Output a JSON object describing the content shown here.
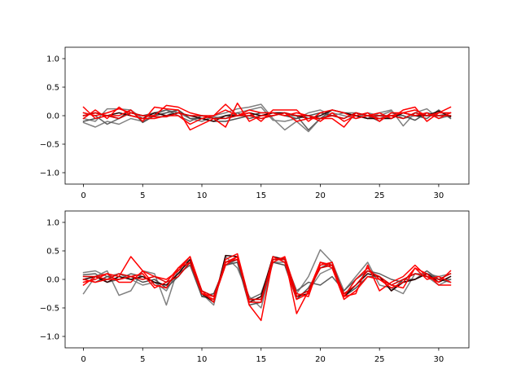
{
  "chart_data": [
    {
      "type": "line",
      "title": "",
      "xlabel": "",
      "ylabel": "",
      "xlim": [
        -1.55,
        32.55
      ],
      "ylim": [
        -1.2,
        1.2
      ],
      "xticks": [
        0,
        5,
        10,
        15,
        20,
        25,
        30
      ],
      "xtick_labels": [
        "0",
        "5",
        "10",
        "15",
        "20",
        "25",
        "30"
      ],
      "yticks": [
        -1.0,
        -0.5,
        0.0,
        0.5,
        1.0
      ],
      "ytick_labels": [
        "−1.0",
        "−0.5",
        "0.0",
        "0.5",
        "1.0"
      ],
      "grid": false,
      "legend": "none",
      "x": [
        0,
        1,
        2,
        3,
        4,
        5,
        6,
        7,
        8,
        9,
        10,
        11,
        12,
        13,
        14,
        15,
        16,
        17,
        18,
        19,
        20,
        21,
        22,
        23,
        24,
        25,
        26,
        27,
        28,
        29,
        30,
        31
      ],
      "series": [
        {
          "color": "#808080",
          "values": [
            -0.12,
            -0.2,
            -0.1,
            -0.15,
            -0.05,
            -0.1,
            0.02,
            0.1,
            0.05,
            -0.05,
            -0.1,
            0.0,
            0.05,
            0.12,
            0.15,
            0.2,
            -0.05,
            -0.25,
            -0.1,
            -0.28,
            -0.05,
            0.05,
            0.0,
            -0.05,
            0.05,
            0.0,
            0.08,
            -0.05,
            0.0,
            0.05,
            0.0,
            0.05
          ]
        },
        {
          "color": "#808080",
          "values": [
            -0.05,
            -0.1,
            0.12,
            0.12,
            0.1,
            -0.05,
            0.05,
            0.0,
            0.1,
            -0.05,
            -0.1,
            -0.02,
            -0.05,
            0.05,
            0.1,
            0.15,
            -0.08,
            -0.1,
            -0.05,
            0.05,
            0.1,
            0.0,
            0.05,
            0.05,
            -0.05,
            0.05,
            0.1,
            -0.18,
            0.05,
            0.12,
            -0.05,
            0.0
          ]
        },
        {
          "color": "#606060",
          "values": [
            0.05,
            0.0,
            -0.15,
            -0.05,
            0.05,
            0.0,
            0.05,
            0.1,
            0.0,
            -0.1,
            0.0,
            -0.05,
            0.0,
            0.05,
            -0.05,
            0.0,
            0.05,
            0.0,
            0.0,
            -0.25,
            -0.05,
            0.1,
            0.05,
            0.0,
            -0.05,
            0.0,
            -0.05,
            0.05,
            0.0,
            -0.05,
            0.1,
            -0.05
          ]
        },
        {
          "color": "#505050",
          "values": [
            -0.1,
            -0.05,
            0.0,
            -0.05,
            0.1,
            -0.12,
            0.0,
            0.05,
            0.1,
            -0.05,
            -0.05,
            -0.1,
            -0.1,
            -0.05,
            0.0,
            0.05,
            0.05,
            0.0,
            -0.05,
            0.0,
            0.05,
            0.0,
            -0.05,
            0.05,
            0.0,
            -0.1,
            0.05,
            0.0,
            -0.08,
            0.05,
            0.0,
            0.0
          ]
        },
        {
          "color": "#2a0000",
          "values": [
            0.0,
            0.05,
            0.0,
            0.05,
            0.0,
            -0.05,
            0.05,
            0.0,
            0.05,
            0.0,
            -0.05,
            -0.1,
            0.0,
            0.0,
            0.05,
            0.0,
            0.05,
            0.05,
            0.0,
            -0.05,
            0.0,
            0.1,
            0.05,
            0.0,
            -0.05,
            -0.05,
            -0.05,
            0.05,
            0.0,
            0.0,
            0.08,
            -0.02
          ]
        },
        {
          "color": "#ff0000",
          "values": [
            0.15,
            -0.05,
            0.0,
            0.0,
            0.1,
            -0.1,
            0.15,
            0.12,
            0.1,
            -0.25,
            -0.15,
            -0.05,
            -0.2,
            0.22,
            -0.1,
            0.0,
            0.0,
            0.05,
            -0.1,
            -0.05,
            -0.05,
            -0.05,
            -0.2,
            0.05,
            0.0,
            0.05,
            -0.05,
            0.1,
            0.15,
            -0.1,
            0.05,
            0.15
          ]
        },
        {
          "color": "#ff0000",
          "values": [
            0.05,
            0.0,
            0.05,
            0.12,
            0.05,
            0.0,
            0.0,
            0.18,
            0.15,
            0.05,
            0.0,
            0.0,
            0.1,
            0.0,
            0.05,
            -0.1,
            0.1,
            0.1,
            0.1,
            -0.1,
            0.05,
            0.1,
            0.05,
            -0.05,
            0.0,
            -0.05,
            0.0,
            0.05,
            0.1,
            0.0,
            0.05,
            0.05
          ]
        },
        {
          "color": "#ff0000",
          "values": [
            -0.05,
            0.1,
            -0.05,
            0.15,
            0.0,
            -0.05,
            -0.05,
            0.0,
            0.0,
            -0.15,
            -0.05,
            0.0,
            0.2,
            0.0,
            0.1,
            0.05,
            0.05,
            0.0,
            0.05,
            0.0,
            -0.1,
            0.05,
            -0.1,
            0.0,
            0.05,
            -0.1,
            0.05,
            0.05,
            0.0,
            0.05,
            -0.05,
            0.05
          ]
        },
        {
          "color": "#dd0000",
          "values": [
            0.0,
            0.05,
            0.0,
            -0.05,
            0.05,
            0.0,
            -0.02,
            -0.02,
            0.05,
            0.0,
            0.0,
            -0.05,
            -0.05,
            0.0,
            0.0,
            -0.05,
            0.0,
            0.05,
            0.0,
            0.0,
            -0.05,
            0.0,
            -0.05,
            0.05,
            0.0,
            0.0,
            0.0,
            -0.05,
            0.05,
            0.0,
            0.0,
            0.0
          ]
        }
      ]
    },
    {
      "type": "line",
      "title": "",
      "xlabel": "",
      "ylabel": "",
      "xlim": [
        -1.55,
        32.55
      ],
      "ylim": [
        -1.2,
        1.2
      ],
      "xticks": [
        0,
        5,
        10,
        15,
        20,
        25,
        30
      ],
      "xtick_labels": [
        "0",
        "5",
        "10",
        "15",
        "20",
        "25",
        "30"
      ],
      "yticks": [
        -1.0,
        -0.5,
        0.0,
        0.5,
        1.0
      ],
      "ytick_labels": [
        "−1.0",
        "−0.5",
        "0.0",
        "0.5",
        "1.0"
      ],
      "grid": false,
      "legend": "none",
      "x": [
        0,
        1,
        2,
        3,
        4,
        5,
        6,
        7,
        8,
        9,
        10,
        11,
        12,
        13,
        14,
        15,
        16,
        17,
        18,
        19,
        20,
        21,
        22,
        23,
        24,
        25,
        26,
        27,
        28,
        29,
        30,
        31
      ],
      "series": [
        {
          "color": "#808080",
          "values": [
            -0.25,
            0.05,
            0.15,
            -0.28,
            -0.2,
            0.15,
            0.1,
            -0.45,
            0.2,
            0.35,
            -0.25,
            -0.45,
            0.4,
            0.2,
            -0.3,
            -0.5,
            0.3,
            0.3,
            -0.25,
            0.05,
            0.52,
            0.3,
            -0.2,
            0.05,
            0.3,
            -0.1,
            -0.15,
            -0.25,
            0.1,
            0.05,
            -0.1,
            0.0
          ]
        },
        {
          "color": "#808080",
          "values": [
            0.12,
            0.15,
            0.05,
            0.1,
            0.0,
            -0.1,
            -0.05,
            -0.2,
            0.15,
            0.3,
            -0.2,
            -0.3,
            0.3,
            0.4,
            -0.4,
            -0.3,
            0.4,
            0.3,
            -0.3,
            -0.2,
            0.1,
            0.2,
            -0.3,
            0.0,
            0.2,
            0.0,
            -0.1,
            0.0,
            0.1,
            0.1,
            0.05,
            0.1
          ]
        },
        {
          "color": "#606060",
          "values": [
            0.08,
            0.1,
            -0.05,
            0.0,
            0.1,
            0.05,
            -0.05,
            -0.1,
            0.1,
            0.25,
            -0.3,
            -0.35,
            0.25,
            0.35,
            -0.35,
            -0.25,
            0.35,
            0.35,
            -0.2,
            -0.05,
            -0.1,
            0.05,
            -0.2,
            0.0,
            0.15,
            0.1,
            0.0,
            -0.05,
            0.0,
            0.15,
            0.0,
            0.0
          ]
        },
        {
          "color": "#505050",
          "values": [
            0.0,
            -0.05,
            0.05,
            0.0,
            0.05,
            -0.05,
            0.0,
            -0.15,
            0.05,
            0.3,
            -0.3,
            -0.25,
            0.25,
            0.3,
            -0.45,
            -0.4,
            0.3,
            0.25,
            -0.35,
            -0.15,
            0.2,
            0.3,
            -0.3,
            -0.15,
            0.05,
            0.05,
            -0.2,
            0.0,
            0.0,
            0.1,
            0.0,
            -0.05
          ]
        },
        {
          "color": "#2a0000",
          "values": [
            0.0,
            0.05,
            -0.05,
            0.05,
            0.0,
            0.05,
            -0.05,
            -0.1,
            0.1,
            0.35,
            -0.25,
            -0.4,
            0.42,
            0.4,
            -0.4,
            -0.3,
            0.4,
            0.35,
            -0.3,
            -0.25,
            0.3,
            0.25,
            -0.3,
            -0.1,
            0.1,
            0.05,
            -0.2,
            -0.05,
            0.0,
            0.1,
            -0.05,
            0.05
          ]
        },
        {
          "color": "#ff0000",
          "values": [
            -0.05,
            0.0,
            0.1,
            0.05,
            0.4,
            0.15,
            -0.1,
            -0.15,
            0.2,
            0.4,
            -0.25,
            -0.3,
            0.3,
            0.4,
            -0.45,
            -0.72,
            0.35,
            0.38,
            -0.6,
            -0.2,
            0.3,
            0.25,
            -0.3,
            -0.25,
            0.25,
            -0.2,
            -0.05,
            0.05,
            0.25,
            0.05,
            -0.05,
            0.15
          ]
        },
        {
          "color": "#ff0000",
          "values": [
            -0.1,
            0.05,
            0.1,
            -0.05,
            -0.05,
            0.15,
            0.05,
            0.0,
            0.15,
            0.4,
            -0.2,
            -0.4,
            0.35,
            0.45,
            -0.35,
            -0.35,
            0.3,
            0.4,
            -0.25,
            -0.3,
            0.3,
            0.2,
            -0.35,
            -0.2,
            0.05,
            0.0,
            -0.1,
            -0.15,
            0.2,
            0.0,
            0.05,
            -0.05
          ]
        },
        {
          "color": "#ff0000",
          "values": [
            0.0,
            -0.05,
            0.0,
            0.0,
            0.05,
            0.1,
            -0.15,
            -0.05,
            0.2,
            0.3,
            -0.25,
            -0.35,
            0.25,
            0.4,
            -0.4,
            -0.4,
            0.4,
            0.3,
            -0.35,
            -0.25,
            0.25,
            0.3,
            -0.3,
            0.0,
            0.2,
            0.0,
            -0.15,
            -0.05,
            0.2,
            0.1,
            -0.1,
            -0.1
          ]
        },
        {
          "color": "#dd0000",
          "values": [
            0.05,
            0.05,
            0.0,
            0.1,
            0.05,
            0.0,
            0.05,
            -0.05,
            0.05,
            0.3,
            -0.2,
            -0.3,
            0.3,
            0.35,
            -0.35,
            -0.35,
            0.35,
            0.35,
            -0.3,
            -0.2,
            0.2,
            0.25,
            -0.25,
            -0.1,
            0.15,
            0.05,
            -0.1,
            0.0,
            0.1,
            0.05,
            0.0,
            0.1
          ]
        }
      ]
    }
  ]
}
